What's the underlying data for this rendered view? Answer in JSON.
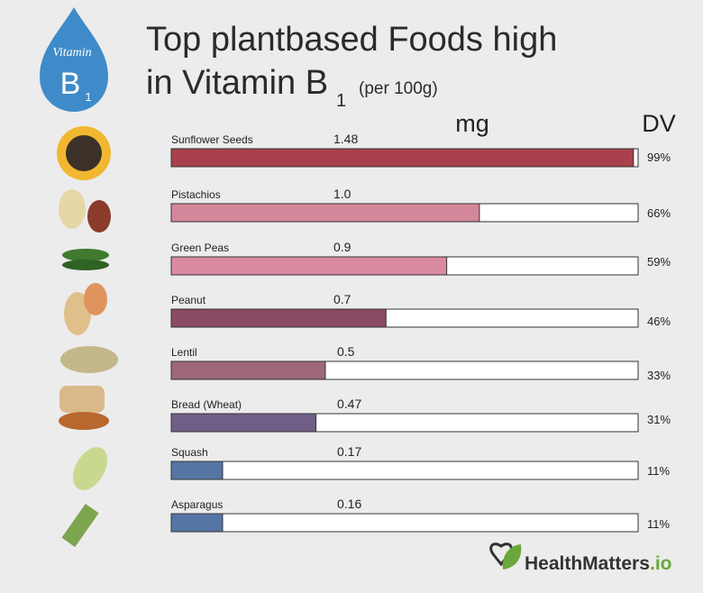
{
  "chart_data": {
    "type": "bar",
    "title": [
      "Top plantbased Foods high",
      "in Vitamin B"
    ],
    "title_subscript": "1",
    "subtitle": "(per 100g)",
    "badge": {
      "label": "Vitamin",
      "letter": "B",
      "subscript": "1"
    },
    "categories": [
      "Sunflower Seeds",
      "Pistachios",
      "Green Peas",
      "Peanut",
      "Lentil",
      "Bread (Wheat)",
      "Squash",
      "Asparagus"
    ],
    "series": [
      {
        "name": "DV",
        "values": [
          99,
          66,
          59,
          46,
          33,
          31,
          11,
          11
        ],
        "value_labels": [
          "99%",
          "66%",
          "59%",
          "46%",
          "33%",
          "31%",
          "11%",
          "11%"
        ],
        "colors": [
          "#a8414b",
          "#d4879b",
          "#d98aa0",
          "#8b4a66",
          "#9e6878",
          "#6f5f86",
          "#5575a5",
          "#5575a5"
        ]
      },
      {
        "name": "mg",
        "values": [
          1.48,
          1.0,
          0.9,
          0.7,
          0.5,
          0.47,
          0.17,
          0.16
        ],
        "value_labels": [
          "1.48",
          "1.0",
          "0.9",
          "0.7",
          "0.5",
          "0.47",
          "0.17",
          "0.16"
        ]
      }
    ],
    "xlim": [
      0,
      100
    ],
    "brand": [
      "HealthMatters",
      ".io"
    ]
  }
}
